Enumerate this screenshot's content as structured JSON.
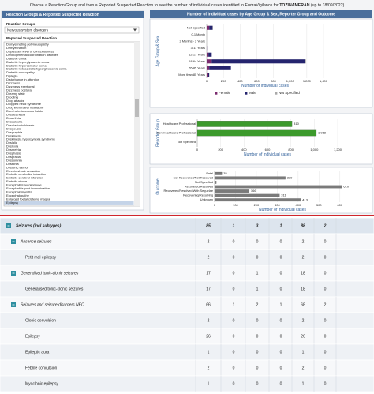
{
  "header": {
    "text_before": "Choose a Reaction Group and then a Reported Suspected Reaction to see the number of individual cases identified in EudraVigilance for ",
    "drug": "TOZINAMERAN",
    "text_after": " (up to 18/09/2022)"
  },
  "left_panel": {
    "title": "Reaction Groups & Reported Suspected Reaction",
    "group_label": "Reaction Groups",
    "group_value": "Nervous system disorders",
    "reaction_label": "Reported Suspected Reaction",
    "reactions": [
      {
        "label": "Demyelinating polyneuropathy"
      },
      {
        "label": "Demyelination"
      },
      {
        "label": "Depressed level of consciousness"
      },
      {
        "label": "Developmental coordination disorder"
      },
      {
        "label": "Diabetic coma"
      },
      {
        "label": "Diabetic hyperglycaemic coma"
      },
      {
        "label": "Diabetic hyperosmolar coma"
      },
      {
        "label": "Diabetic ketoacidotic hyperglycaemic coma"
      },
      {
        "label": "Diabetic neuropathy"
      },
      {
        "label": "Diplegia"
      },
      {
        "label": "Disturbance in attention"
      },
      {
        "label": "Dizziness"
      },
      {
        "label": "Dizziness exertional"
      },
      {
        "label": "Dizziness postural"
      },
      {
        "label": "Dreamy state"
      },
      {
        "label": "Drooling"
      },
      {
        "label": "Drop attacks"
      },
      {
        "label": "Dropped head syndrome"
      },
      {
        "label": "Drug withdrawal headache"
      },
      {
        "label": "Dural arteriovenous fistula"
      },
      {
        "label": "Dysaesthesia"
      },
      {
        "label": "Dysarthria"
      },
      {
        "label": "Dyscalculia"
      },
      {
        "label": "Dysdiadochokinesis"
      },
      {
        "label": "Dysgeusia"
      },
      {
        "label": "Dysgraphia"
      },
      {
        "label": "Dyskinesia"
      },
      {
        "label": "Dyskinesia hyperpyrexia syndrome"
      },
      {
        "label": "Dyslalia"
      },
      {
        "label": "Dyslexia"
      },
      {
        "label": "Dysmetria"
      },
      {
        "label": "Dysphasia"
      },
      {
        "label": "Dyspraxia"
      },
      {
        "label": "Dyssomnia"
      },
      {
        "label": "Dystonia"
      },
      {
        "label": "Dystonic tremor"
      },
      {
        "label": "Electric shock sensation"
      },
      {
        "label": "Embolic cerebellar infarction"
      },
      {
        "label": "Embolic cerebral infarction"
      },
      {
        "label": "Embolic stroke"
      },
      {
        "label": "Encephalitis autoimmune"
      },
      {
        "label": "Encephalitis post immunisation"
      },
      {
        "label": "Encephalomyelitis"
      },
      {
        "label": "Encephalopathy"
      },
      {
        "label": "Enlarged foetal cisterna magna"
      },
      {
        "label": "Epilepsy",
        "selected": true
      }
    ]
  },
  "charts_title": "Number of individual cases by Age Group & Sex, Reporter Group and Outcome",
  "chart_data": [
    {
      "type": "stacked_barh",
      "y_label": "Age Group & Sex",
      "x_label": "Number of individual cases",
      "categories": [
        "Not Specified",
        "0-1 Month",
        "2 Months - 2 Years",
        "3-11 Years",
        "12-17 Years",
        "18-64 Years",
        "65-85 Years",
        "More than 85 Years"
      ],
      "series": [
        {
          "name": "Female",
          "color": "#7a2a6e",
          "values": [
            30,
            0,
            0,
            1,
            20,
            60,
            30,
            10
          ]
        },
        {
          "name": "Male",
          "color": "#25246e",
          "values": [
            40,
            0,
            0,
            1,
            40,
            1120,
            260,
            20
          ]
        },
        {
          "name": "Not Specified",
          "color": "#a9a9a9",
          "values": [
            5,
            0,
            0,
            0,
            0,
            10,
            0,
            0
          ]
        }
      ],
      "xlim": [
        0,
        1400
      ],
      "xticks": [
        0,
        200,
        400,
        600,
        800,
        {
          "value": 1000,
          "label": "1,000"
        },
        {
          "value": 1200,
          "label": "1,200"
        },
        {
          "value": 1400,
          "label": "1,400"
        }
      ],
      "grid": true
    },
    {
      "type": "barh",
      "y_label": "Reporter Group",
      "x_label": "Number of individual cases",
      "color": "#3c9a2c",
      "categories": [
        "Healthcare Professional",
        "Non Healthcare Professional",
        "Not Specified"
      ],
      "values": [
        810,
        1018,
        0
      ],
      "value_labels": [
        "810",
        "1,018",
        null
      ],
      "xlim": [
        0,
        1200
      ],
      "xticks": [
        0,
        200,
        400,
        600,
        800,
        {
          "value": 1000,
          "label": "1,000"
        },
        {
          "value": 1200,
          "label": "1,200"
        }
      ],
      "grid": true
    },
    {
      "type": "barh",
      "y_label": "Outcome",
      "x_label": "Number of individual cases",
      "color": "#7a7a7a",
      "categories": [
        "Fatal",
        "Not Recovered/Not Resolved",
        "Not Specified",
        "Recovered/Resolved",
        "Recovered/Resolved With Sequelae",
        "Recovering/Resolving",
        "Unknown"
      ],
      "values": [
        35,
        339,
        8,
        610,
        166,
        311,
        413
      ],
      "value_labels": [
        "35",
        "339",
        null,
        "610",
        "166",
        "311",
        "413"
      ],
      "xlim": [
        0,
        650
      ],
      "xticks": [
        0,
        100,
        200,
        300,
        400,
        500,
        600
      ],
      "grid": true
    }
  ],
  "table": {
    "rows": [
      {
        "label": "Seizures (incl subtypes)",
        "level": 0,
        "values": [
          85,
          1,
          3,
          1,
          88,
          2
        ]
      },
      {
        "label": "Absence seizures",
        "level": 1,
        "values": [
          2,
          0,
          0,
          0,
          2,
          0
        ]
      },
      {
        "label": "Petit mal epilepsy",
        "level": 2,
        "values": [
          2,
          0,
          0,
          0,
          2,
          0
        ]
      },
      {
        "label": "Generalised tonic-clonic seizures",
        "level": 1,
        "values": [
          17,
          0,
          1,
          0,
          18,
          0
        ]
      },
      {
        "label": "Generalised tonic-clonic seizures",
        "level": 2,
        "values": [
          17,
          0,
          1,
          0,
          18,
          0
        ]
      },
      {
        "label": "Seizures and seizure disorders NEC",
        "level": 1,
        "values": [
          66,
          1,
          2,
          1,
          68,
          2
        ]
      },
      {
        "label": "Clonic convulsion",
        "level": 2,
        "values": [
          2,
          0,
          0,
          0,
          2,
          0
        ]
      },
      {
        "label": "Epilepsy",
        "level": 2,
        "values": [
          26,
          0,
          0,
          0,
          26,
          0
        ]
      },
      {
        "label": "Epileptic aura",
        "level": 2,
        "values": [
          1,
          0,
          0,
          0,
          1,
          0
        ]
      },
      {
        "label": "Febrile convulsion",
        "level": 2,
        "values": [
          2,
          0,
          0,
          0,
          2,
          0
        ]
      },
      {
        "label": "Myoclonic epilepsy",
        "level": 2,
        "values": [
          1,
          0,
          0,
          0,
          1,
          0
        ]
      }
    ]
  }
}
